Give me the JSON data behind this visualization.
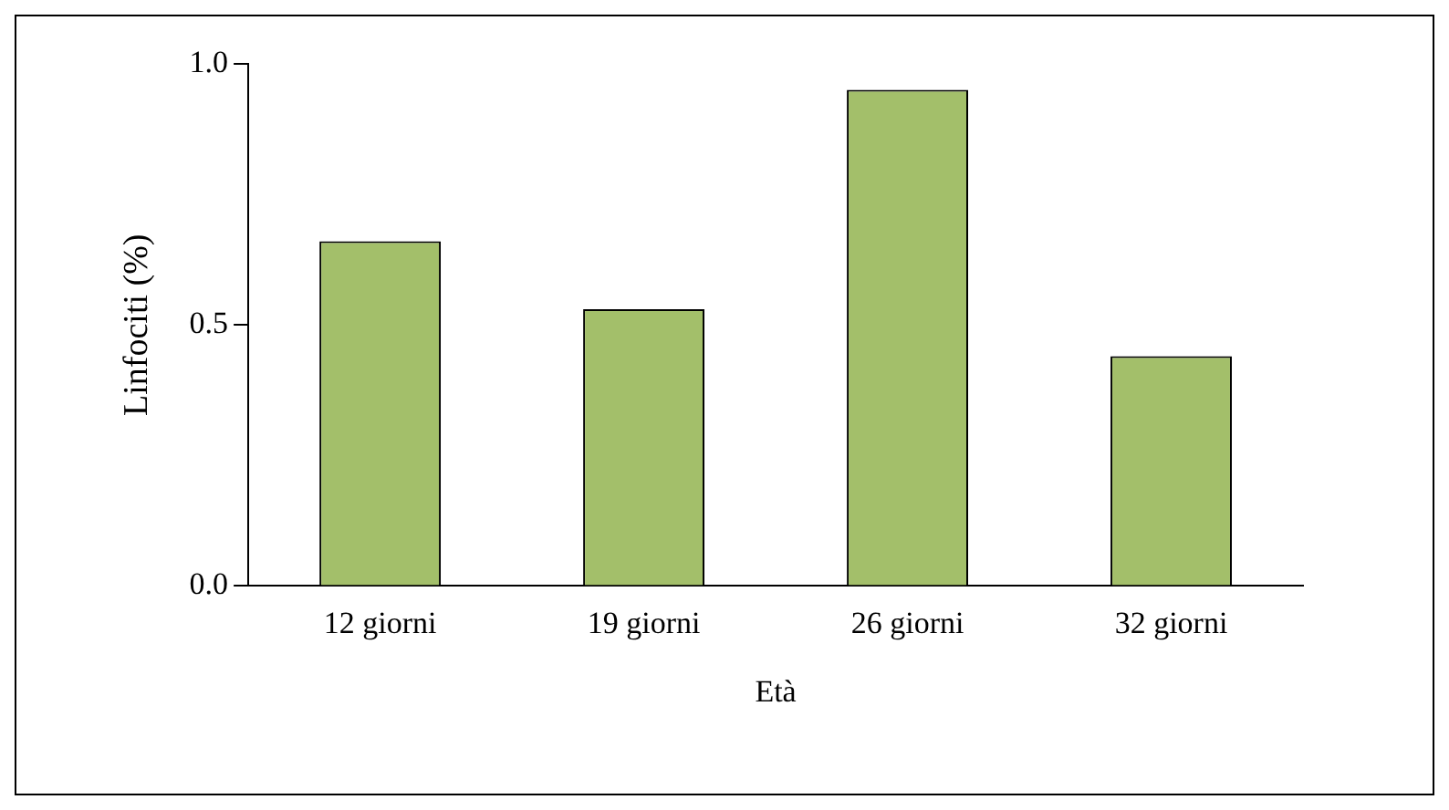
{
  "chart_data": {
    "type": "bar",
    "xlabel": "Età",
    "ylabel": "Linfociti (%)",
    "categories": [
      "12 giorni",
      "19 giorni",
      "26 giorni",
      "32 giorni"
    ],
    "values": [
      0.66,
      0.53,
      0.95,
      0.44
    ],
    "color": "#a3bf6a",
    "ylim": [
      0,
      1
    ],
    "yticks": [
      {
        "value": 0,
        "label": "0.0"
      },
      {
        "value": 0.5,
        "label": "0.5"
      },
      {
        "value": 1,
        "label": "1.0"
      }
    ],
    "grid": false,
    "legend": false
  }
}
